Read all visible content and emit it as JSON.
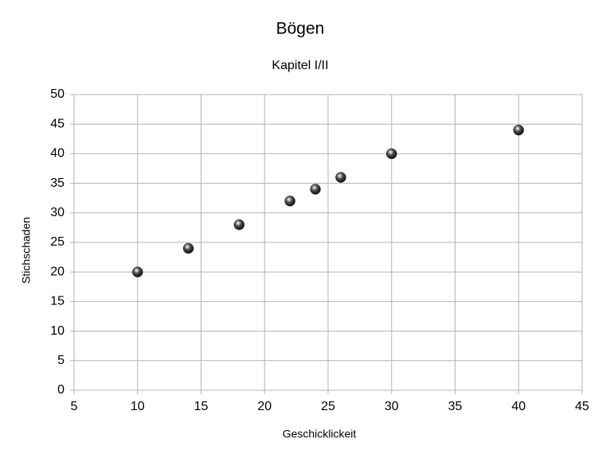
{
  "chart_data": {
    "type": "scatter",
    "title": "Bögen",
    "subtitle": "Kapitel I/II",
    "x_label": "Geschicklickeit",
    "y_label": "Stichschaden",
    "x": [
      10,
      14,
      18,
      22,
      24,
      26,
      30,
      40
    ],
    "values": [
      20,
      24,
      28,
      32,
      34,
      36,
      40,
      44
    ],
    "color": "#4d4d4d",
    "xlim": [
      5,
      45
    ],
    "xticks": [
      5,
      10,
      15,
      20,
      25,
      30,
      35,
      40,
      45
    ],
    "ylim": [
      0,
      50
    ],
    "yticks": [
      0,
      5,
      10,
      15,
      20,
      25,
      30,
      35,
      40,
      45,
      50
    ],
    "grid": true
  }
}
